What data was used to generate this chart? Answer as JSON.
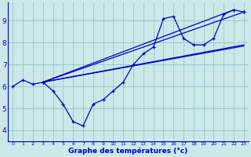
{
  "bg_color": "#cce8e8",
  "grid_color": "#99cccc",
  "line_color": "#0000bb",
  "xlabel": "Graphe des températures (°c)",
  "xlim": [
    -0.5,
    23.5
  ],
  "ylim": [
    3.5,
    9.85
  ],
  "yticks": [
    4,
    5,
    6,
    7,
    8,
    9
  ],
  "xticks": [
    0,
    1,
    2,
    3,
    4,
    5,
    6,
    7,
    8,
    9,
    10,
    11,
    12,
    13,
    14,
    15,
    16,
    17,
    18,
    19,
    20,
    21,
    22,
    23
  ],
  "zigzag_x": [
    0,
    1,
    2,
    3,
    4,
    5,
    6,
    7,
    8,
    9,
    10,
    11,
    12,
    13,
    14,
    15,
    16,
    17,
    18,
    19,
    20,
    21,
    22,
    23
  ],
  "zigzag_y": [
    6.0,
    6.3,
    6.1,
    6.2,
    5.8,
    5.2,
    4.4,
    4.2,
    5.2,
    5.4,
    5.8,
    6.2,
    7.0,
    7.5,
    7.8,
    9.1,
    9.2,
    8.2,
    7.9,
    7.9,
    8.2,
    9.3,
    9.5,
    9.4
  ],
  "trend1_x": [
    3,
    22
  ],
  "trend1_y": [
    6.2,
    9.5
  ],
  "trend2_x": [
    3,
    23
  ],
  "trend2_y": [
    6.2,
    9.4
  ],
  "trend3_x": [
    3,
    23
  ],
  "trend3_y": [
    6.2,
    7.9
  ],
  "trend4_x": [
    3,
    23
  ],
  "trend4_y": [
    6.2,
    7.85
  ]
}
